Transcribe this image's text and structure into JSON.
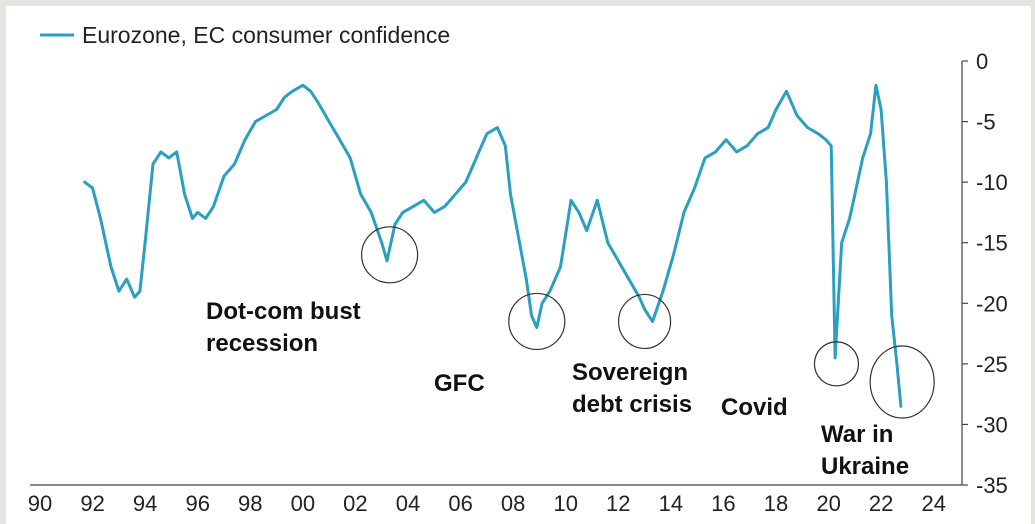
{
  "chart_data": {
    "type": "line",
    "title": "",
    "xlabel": "",
    "ylabel": "",
    "series": [
      {
        "name": "Eurozone, EC consumer confidence",
        "color": "#2a9fc0",
        "x": [
          1991.7,
          1992.0,
          1992.3,
          1992.7,
          1993.0,
          1993.3,
          1993.6,
          1993.8,
          1994.0,
          1994.3,
          1994.6,
          1994.9,
          1995.2,
          1995.5,
          1995.8,
          1996.0,
          1996.3,
          1996.6,
          1997.0,
          1997.4,
          1997.8,
          1998.2,
          1998.6,
          1999.0,
          1999.3,
          1999.6,
          2000.0,
          2000.3,
          2000.6,
          2001.0,
          2001.4,
          2001.8,
          2002.2,
          2002.6,
          2003.0,
          2003.2,
          2003.5,
          2003.8,
          2004.2,
          2004.6,
          2005.0,
          2005.4,
          2005.8,
          2006.2,
          2006.6,
          2007.0,
          2007.4,
          2007.7,
          2007.9,
          2008.2,
          2008.5,
          2008.7,
          2008.9,
          2009.1,
          2009.4,
          2009.8,
          2010.2,
          2010.5,
          2010.8,
          2011.2,
          2011.6,
          2012.0,
          2012.4,
          2012.8,
          2013.0,
          2013.3,
          2013.7,
          2014.1,
          2014.5,
          2014.9,
          2015.3,
          2015.7,
          2016.1,
          2016.5,
          2016.9,
          2017.3,
          2017.7,
          2018.0,
          2018.4,
          2018.8,
          2019.2,
          2019.6,
          2019.9,
          2020.1,
          2020.25,
          2020.5,
          2020.8,
          2021.0,
          2021.3,
          2021.6,
          2021.8,
          2022.0,
          2022.2,
          2022.4,
          2022.6,
          2022.75
        ],
        "y": [
          -10,
          -10.5,
          -13,
          -17,
          -19,
          -18,
          -19.5,
          -19,
          -15,
          -8.5,
          -7.5,
          -8,
          -7.5,
          -11,
          -13,
          -12.5,
          -13,
          -12,
          -9.5,
          -8.5,
          -6.5,
          -5,
          -4.5,
          -4,
          -3,
          -2.5,
          -2,
          -2.5,
          -3.5,
          -5,
          -6.5,
          -8,
          -11,
          -12.5,
          -15,
          -16.5,
          -13.5,
          -12.5,
          -12,
          -11.5,
          -12.5,
          -12,
          -11,
          -10,
          -8,
          -6,
          -5.5,
          -7,
          -11,
          -14.5,
          -18,
          -21,
          -22,
          -20,
          -19,
          -17,
          -11.5,
          -12.5,
          -14,
          -11.5,
          -15,
          -16.5,
          -18,
          -19.5,
          -20.5,
          -21.5,
          -19,
          -16,
          -12.5,
          -10.5,
          -8,
          -7.5,
          -6.5,
          -7.5,
          -7,
          -6,
          -5.5,
          -4,
          -2.5,
          -4.5,
          -5.5,
          -6,
          -6.5,
          -7,
          -24.5,
          -15,
          -13,
          -11,
          -8,
          -6,
          -2,
          -4,
          -10,
          -21,
          -25,
          -28.5
        ]
      }
    ],
    "xlim": [
      1990,
      2025
    ],
    "x_ticks": [
      "90",
      "92",
      "94",
      "96",
      "98",
      "00",
      "02",
      "04",
      "06",
      "08",
      "10",
      "12",
      "14",
      "16",
      "18",
      "20",
      "22",
      "24"
    ],
    "x_tick_values": [
      1990,
      1992,
      1994,
      1996,
      1998,
      2000,
      2002,
      2004,
      2006,
      2008,
      2010,
      2012,
      2014,
      2016,
      2018,
      2020,
      2022,
      2024
    ],
    "ylim": [
      -35,
      0
    ],
    "y_ticks": [
      "0",
      "-5",
      "-10",
      "-15",
      "-20",
      "-25",
      "-30",
      "-35"
    ],
    "y_tick_values": [
      0,
      -5,
      -10,
      -15,
      -20,
      -25,
      -30,
      -35
    ],
    "y_axis_side": "right",
    "grid": false,
    "legend_position": "top-left",
    "annotations": [
      {
        "lines": [
          "Dot-com bust",
          "recession"
        ],
        "circle_x": 2003.3,
        "circle_y": -16
      },
      {
        "lines": [
          "GFC"
        ],
        "circle_x": 2008.9,
        "circle_y": -21.5
      },
      {
        "lines": [
          "Sovereign",
          "debt crisis"
        ],
        "circle_x": 2013.0,
        "circle_y": -21.5
      },
      {
        "lines": [
          "Covid"
        ],
        "circle_x": 2020.3,
        "circle_y": -25
      },
      {
        "lines": [
          "War in",
          "Ukraine"
        ],
        "circle_x": 2022.8,
        "circle_y": -26.5
      }
    ]
  }
}
